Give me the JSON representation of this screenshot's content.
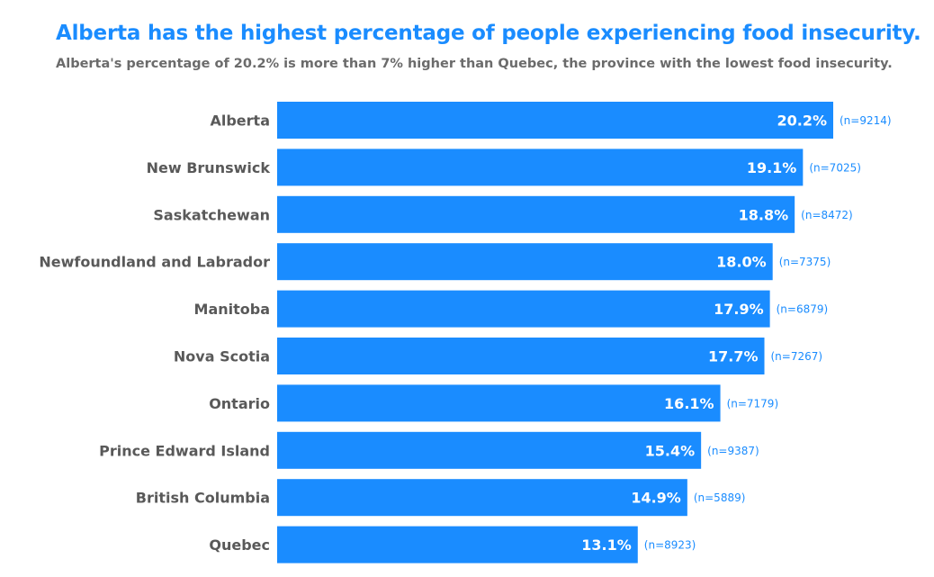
{
  "chart_data": {
    "type": "bar",
    "orientation": "horizontal",
    "title": "Alberta has the highest percentage of people experiencing food insecurity.",
    "subtitle": "Alberta's percentage of 20.2% is more than 7% higher than Quebec, the province with the lowest food insecurity.",
    "categories": [
      "Alberta",
      "New Brunswick",
      "Saskatchewan",
      "Newfoundland and Labrador",
      "Manitoba",
      "Nova Scotia",
      "Ontario",
      "Prince Edward Island",
      "British Columbia",
      "Quebec"
    ],
    "values": [
      20.2,
      19.1,
      18.8,
      18.0,
      17.9,
      17.7,
      16.1,
      15.4,
      14.9,
      13.1
    ],
    "value_labels": [
      "20.2%",
      "19.1%",
      "18.8%",
      "18.0%",
      "17.9%",
      "17.7%",
      "16.1%",
      "15.4%",
      "14.9%",
      "13.1%"
    ],
    "sample_sizes": [
      "(n=9214)",
      "(n=7025)",
      "(n=8472)",
      "(n=7375)",
      "(n=6879)",
      "(n=7267)",
      "(n=7179)",
      "(n=9387)",
      "(n=5889)",
      "(n=8923)"
    ],
    "xlim": [
      0,
      20.2
    ],
    "xlabel": "",
    "ylabel": "",
    "grid": false,
    "legend": "none",
    "bar_color": "#1a8cff",
    "title_color": "#1a8cff",
    "label_color": "#595959"
  }
}
